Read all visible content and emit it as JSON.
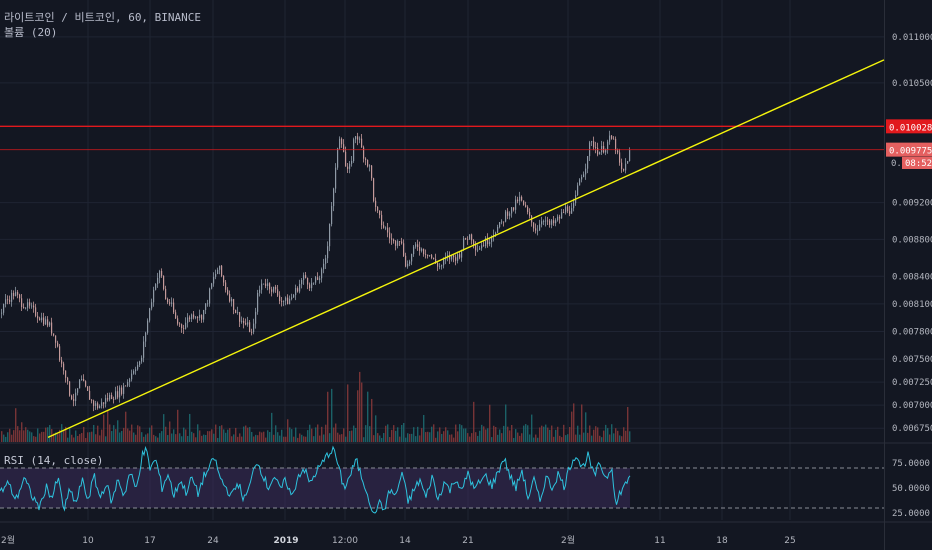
{
  "header": {
    "title": "라이트코인 / 비트코인, 60, BINANCE",
    "volume_label": "볼륨 (20)"
  },
  "rsi_label": "RSI (14, close)",
  "colors": {
    "background": "#131722",
    "grid": "#1f2433",
    "candle_up": "#8f9aa6",
    "candle_down": "#c49a9a",
    "volume_up": "#1d6f73",
    "volume_down": "#8a3a3a",
    "trendline": "#f5f50c",
    "resistance": "#e1191d",
    "rsi_line": "#2ec3de",
    "rsi_band": "#3b2b5a"
  },
  "chart_data": [
    {
      "type": "candlestick",
      "title": "라이트코인 / 비트코인, 60, BINANCE",
      "x_ticks": [
        "2월",
        "10",
        "17",
        "24",
        "2019",
        "12:00",
        "14",
        "21",
        "2월",
        "11",
        "18",
        "25"
      ],
      "y_ticks": [
        "0.011000",
        "0.010500",
        "0.010028",
        "0.009775",
        "0.009200",
        "0.008800",
        "0.008400",
        "0.008100",
        "0.007800",
        "0.007500",
        "0.007250",
        "0.007000",
        "0.006750"
      ],
      "ylim": [
        0.0066,
        0.0114
      ],
      "price_path": [
        [
          0,
          0.008
        ],
        [
          3,
          0.0081
        ],
        [
          10,
          0.00818
        ],
        [
          14,
          0.00822
        ],
        [
          20,
          0.00812
        ],
        [
          30,
          0.00805
        ],
        [
          40,
          0.00795
        ],
        [
          48,
          0.00788
        ],
        [
          56,
          0.0077
        ],
        [
          60,
          0.00745
        ],
        [
          64,
          0.0074
        ],
        [
          68,
          0.00715
        ],
        [
          74,
          0.00705
        ],
        [
          80,
          0.00728
        ],
        [
          86,
          0.00715
        ],
        [
          92,
          0.00702
        ],
        [
          98,
          0.00698
        ],
        [
          104,
          0.00705
        ],
        [
          110,
          0.0071
        ],
        [
          116,
          0.00712
        ],
        [
          122,
          0.00718
        ],
        [
          128,
          0.00728
        ],
        [
          134,
          0.00742
        ],
        [
          140,
          0.00745
        ],
        [
          145,
          0.0078
        ],
        [
          150,
          0.0081
        ],
        [
          155,
          0.00835
        ],
        [
          160,
          0.00845
        ],
        [
          165,
          0.00815
        ],
        [
          170,
          0.0081
        ],
        [
          176,
          0.0079
        ],
        [
          182,
          0.00785
        ],
        [
          188,
          0.00795
        ],
        [
          194,
          0.008
        ],
        [
          200,
          0.00795
        ],
        [
          206,
          0.0081
        ],
        [
          212,
          0.00835
        ],
        [
          218,
          0.0085
        ],
        [
          224,
          0.0083
        ],
        [
          230,
          0.00815
        ],
        [
          236,
          0.008
        ],
        [
          242,
          0.0079
        ],
        [
          248,
          0.00785
        ],
        [
          252,
          0.00775
        ],
        [
          256,
          0.00815
        ],
        [
          262,
          0.00835
        ],
        [
          268,
          0.0083
        ],
        [
          274,
          0.00825
        ],
        [
          280,
          0.00815
        ],
        [
          286,
          0.00812
        ],
        [
          292,
          0.00818
        ],
        [
          298,
          0.0083
        ],
        [
          304,
          0.0084
        ],
        [
          310,
          0.0083
        ],
        [
          316,
          0.00835
        ],
        [
          322,
          0.00845
        ],
        [
          326,
          0.00865
        ],
        [
          330,
          0.0091
        ],
        [
          334,
          0.0094
        ],
        [
          338,
          0.00995
        ],
        [
          342,
          0.00985
        ],
        [
          346,
          0.0095
        ],
        [
          350,
          0.0096
        ],
        [
          354,
          0.00995
        ],
        [
          358,
          0.0099
        ],
        [
          362,
          0.00975
        ],
        [
          366,
          0.00965
        ],
        [
          370,
          0.00955
        ],
        [
          374,
          0.00915
        ],
        [
          378,
          0.00905
        ],
        [
          382,
          0.00895
        ],
        [
          386,
          0.0089
        ],
        [
          390,
          0.0088
        ],
        [
          394,
          0.00875
        ],
        [
          398,
          0.00885
        ],
        [
          402,
          0.0087
        ],
        [
          406,
          0.0085
        ],
        [
          410,
          0.0086
        ],
        [
          416,
          0.00875
        ],
        [
          422,
          0.00868
        ],
        [
          428,
          0.00865
        ],
        [
          434,
          0.00855
        ],
        [
          440,
          0.0085
        ],
        [
          446,
          0.0086
        ],
        [
          452,
          0.0086
        ],
        [
          458,
          0.00862
        ],
        [
          464,
          0.0088
        ],
        [
          470,
          0.00885
        ],
        [
          476,
          0.0087
        ],
        [
          482,
          0.00875
        ],
        [
          488,
          0.0088
        ],
        [
          494,
          0.0089
        ],
        [
          500,
          0.00895
        ],
        [
          506,
          0.0091
        ],
        [
          512,
          0.00912
        ],
        [
          518,
          0.00925
        ],
        [
          524,
          0.00915
        ],
        [
          530,
          0.009
        ],
        [
          536,
          0.0089
        ],
        [
          542,
          0.00905
        ],
        [
          548,
          0.00895
        ],
        [
          554,
          0.00898
        ],
        [
          560,
          0.00905
        ],
        [
          566,
          0.00915
        ],
        [
          572,
          0.0091
        ],
        [
          576,
          0.0093
        ],
        [
          580,
          0.0095
        ],
        [
          584,
          0.00955
        ],
        [
          588,
          0.0098
        ],
        [
          592,
          0.00985
        ],
        [
          598,
          0.00975
        ],
        [
          604,
          0.0098
        ],
        [
          610,
          0.0099
        ],
        [
          614,
          0.00985
        ],
        [
          618,
          0.00965
        ],
        [
          622,
          0.0095
        ],
        [
          626,
          0.00965
        ],
        [
          630,
          0.00978
        ]
      ],
      "trendline": [
        [
          48,
          0.00665
        ],
        [
          884,
          0.01075
        ]
      ],
      "horizontal_levels": [
        {
          "value": 0.010028,
          "label": "0.010028",
          "style": "bright"
        },
        {
          "value": 0.009775,
          "label": "0.009775",
          "style": "dim"
        }
      ],
      "countdown_label": "08:52"
    },
    {
      "type": "line",
      "title": "RSI (14, close)",
      "y_ticks": [
        "75.0000",
        "50.0000",
        "25.0000"
      ],
      "ylim": [
        18,
        92
      ],
      "bands": [
        70,
        30
      ],
      "rsi_path": [
        [
          0,
          45
        ],
        [
          8,
          55
        ],
        [
          16,
          38
        ],
        [
          24,
          60
        ],
        [
          32,
          42
        ],
        [
          40,
          30
        ],
        [
          46,
          52
        ],
        [
          52,
          40
        ],
        [
          58,
          60
        ],
        [
          64,
          28
        ],
        [
          70,
          48
        ],
        [
          76,
          34
        ],
        [
          82,
          58
        ],
        [
          88,
          38
        ],
        [
          94,
          62
        ],
        [
          100,
          40
        ],
        [
          106,
          55
        ],
        [
          112,
          35
        ],
        [
          118,
          60
        ],
        [
          124,
          42
        ],
        [
          130,
          66
        ],
        [
          136,
          48
        ],
        [
          142,
          82
        ],
        [
          146,
          88
        ],
        [
          150,
          70
        ],
        [
          156,
          78
        ],
        [
          162,
          50
        ],
        [
          168,
          64
        ],
        [
          174,
          42
        ],
        [
          180,
          58
        ],
        [
          186,
          46
        ],
        [
          192,
          60
        ],
        [
          198,
          44
        ],
        [
          204,
          62
        ],
        [
          210,
          70
        ],
        [
          214,
          82
        ],
        [
          220,
          60
        ],
        [
          226,
          50
        ],
        [
          232,
          42
        ],
        [
          238,
          56
        ],
        [
          244,
          38
        ],
        [
          250,
          52
        ],
        [
          256,
          78
        ],
        [
          262,
          66
        ],
        [
          268,
          50
        ],
        [
          274,
          62
        ],
        [
          280,
          48
        ],
        [
          286,
          58
        ],
        [
          292,
          40
        ],
        [
          298,
          62
        ],
        [
          304,
          70
        ],
        [
          310,
          54
        ],
        [
          316,
          66
        ],
        [
          322,
          74
        ],
        [
          328,
          84
        ],
        [
          334,
          90
        ],
        [
          338,
          72
        ],
        [
          344,
          50
        ],
        [
          350,
          62
        ],
        [
          356,
          78
        ],
        [
          362,
          60
        ],
        [
          368,
          44
        ],
        [
          374,
          20
        ],
        [
          378,
          36
        ],
        [
          384,
          28
        ],
        [
          390,
          48
        ],
        [
          396,
          42
        ],
        [
          402,
          66
        ],
        [
          408,
          36
        ],
        [
          414,
          48
        ],
        [
          420,
          58
        ],
        [
          426,
          40
        ],
        [
          432,
          62
        ],
        [
          438,
          38
        ],
        [
          444,
          56
        ],
        [
          450,
          48
        ],
        [
          456,
          60
        ],
        [
          462,
          46
        ],
        [
          468,
          66
        ],
        [
          474,
          48
        ],
        [
          480,
          56
        ],
        [
          486,
          62
        ],
        [
          492,
          52
        ],
        [
          498,
          66
        ],
        [
          504,
          80
        ],
        [
          510,
          62
        ],
        [
          516,
          50
        ],
        [
          522,
          68
        ],
        [
          528,
          40
        ],
        [
          534,
          58
        ],
        [
          540,
          36
        ],
        [
          546,
          62
        ],
        [
          552,
          50
        ],
        [
          558,
          64
        ],
        [
          564,
          52
        ],
        [
          570,
          72
        ],
        [
          576,
          84
        ],
        [
          582,
          70
        ],
        [
          588,
          82
        ],
        [
          594,
          62
        ],
        [
          600,
          74
        ],
        [
          606,
          60
        ],
        [
          612,
          72
        ],
        [
          616,
          30
        ],
        [
          620,
          46
        ],
        [
          626,
          54
        ],
        [
          630,
          64
        ]
      ]
    }
  ]
}
